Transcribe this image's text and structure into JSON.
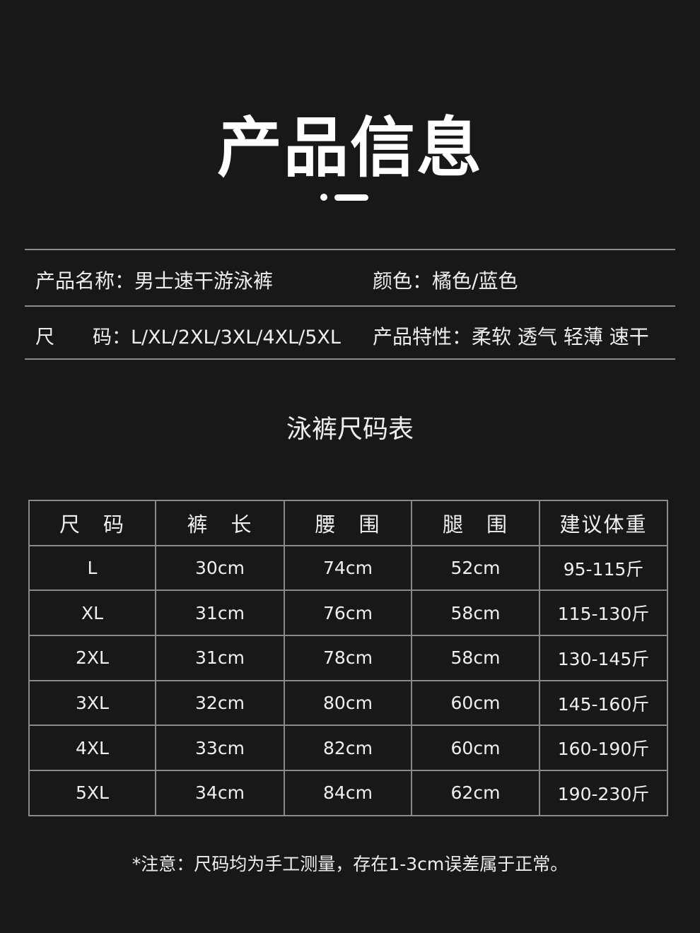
{
  "title": "产品信息",
  "info": {
    "name_label": "产品名称：",
    "name_value": "男士速干游泳裤",
    "color_label": "颜色：",
    "color_value": "橘色/蓝色",
    "size_label": "尺　　码：",
    "size_value": "L/XL/2XL/3XL/4XL/5XL",
    "feature_label": "产品特性：",
    "feature_value": "柔软 透气 轻薄 速干"
  },
  "table_title": "泳裤尺码表",
  "table": {
    "headers": [
      "尺　码",
      "裤　长",
      "腰　围",
      "腿　围",
      "建议体重"
    ],
    "rows": [
      [
        "L",
        "30cm",
        "74cm",
        "52cm",
        "95-115斤"
      ],
      [
        "XL",
        "31cm",
        "76cm",
        "58cm",
        "115-130斤"
      ],
      [
        "2XL",
        "31cm",
        "78cm",
        "58cm",
        "130-145斤"
      ],
      [
        "3XL",
        "32cm",
        "80cm",
        "60cm",
        "145-160斤"
      ],
      [
        "4XL",
        "33cm",
        "82cm",
        "60cm",
        "160-190斤"
      ],
      [
        "5XL",
        "34cm",
        "84cm",
        "62cm",
        "190-230斤"
      ]
    ]
  },
  "note": "*注意：尺码均为手工测量，存在1-3cm误差属于正常。"
}
